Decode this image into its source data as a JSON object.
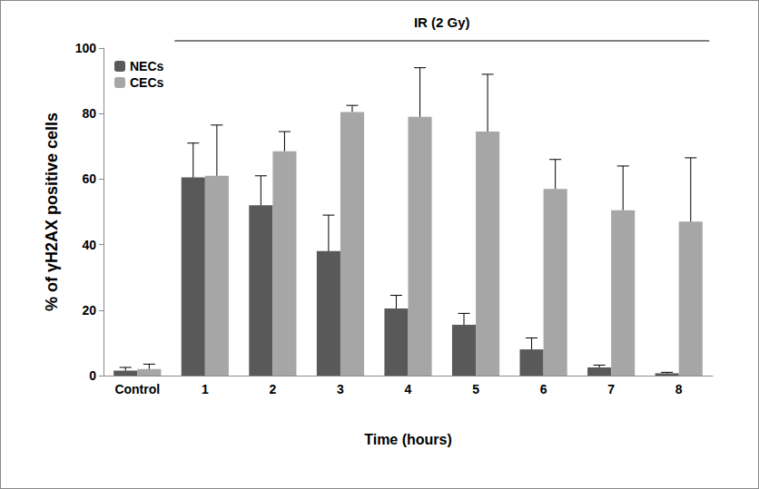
{
  "chart_data": {
    "type": "bar",
    "categories": [
      "Control",
      "1",
      "2",
      "3",
      "4",
      "5",
      "6",
      "7",
      "8"
    ],
    "series": [
      {
        "name": "NECs",
        "color": "#595959",
        "values": [
          1.5,
          60.5,
          52,
          38,
          20.5,
          15.5,
          8,
          2.5,
          0.7
        ],
        "errors": [
          1,
          10.5,
          9,
          11,
          4,
          3.5,
          3.5,
          0.7,
          0.3
        ]
      },
      {
        "name": "CECs",
        "color": "#a6a6a6",
        "values": [
          2,
          61,
          68.5,
          80.5,
          79,
          74.5,
          57,
          50.5,
          47
        ],
        "errors": [
          1.5,
          15.5,
          6,
          2,
          15,
          17.5,
          9,
          13.5,
          19.5
        ]
      }
    ],
    "x_label": "Time (hours)",
    "y_label": "% of γH2AX positive cells",
    "annotation": {
      "text": "IR (2 Gy)",
      "from": "1",
      "to": "8"
    },
    "ylim": [
      0,
      100
    ],
    "yticks": [
      0,
      20,
      40,
      60,
      80,
      100
    ],
    "grid": false,
    "legend": "top-left"
  }
}
